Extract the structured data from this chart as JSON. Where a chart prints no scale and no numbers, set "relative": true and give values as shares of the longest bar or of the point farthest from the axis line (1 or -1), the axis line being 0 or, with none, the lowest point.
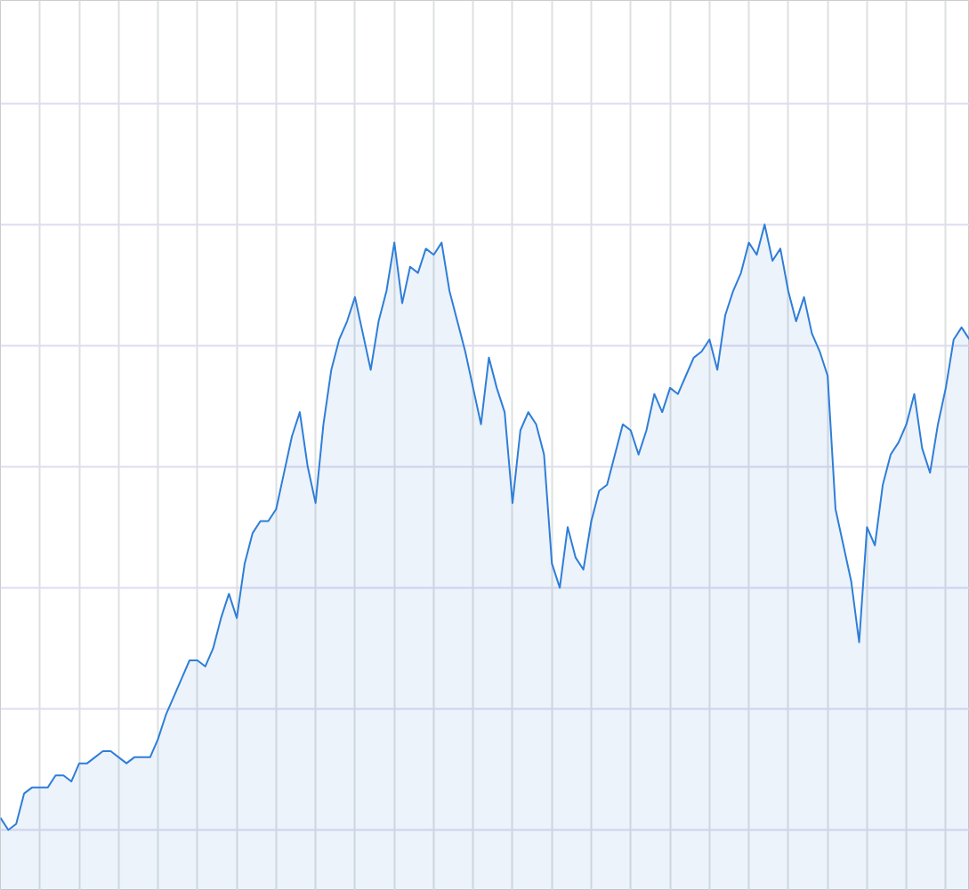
{
  "chart_data": {
    "type": "area",
    "relative": true,
    "grid": true,
    "color": "#2f7ed8",
    "categories": [
      null,
      null,
      null,
      null,
      null,
      null,
      null,
      null,
      null,
      null,
      null,
      null,
      null,
      null,
      null,
      null,
      null,
      null,
      null,
      null,
      null,
      null,
      null,
      null,
      null,
      null,
      null,
      null,
      null,
      null,
      null,
      null,
      null,
      null,
      null,
      null,
      null,
      null,
      null,
      null,
      null,
      null,
      null,
      null,
      null,
      null,
      null,
      null,
      null,
      null,
      null,
      null,
      null,
      null,
      null,
      null,
      null,
      null,
      null,
      null,
      null,
      null,
      null,
      null,
      null,
      null,
      null,
      null,
      null,
      null,
      null,
      null,
      null,
      null,
      null,
      null,
      null,
      null,
      null,
      null,
      null,
      null,
      null,
      null,
      null,
      null,
      null,
      null,
      null,
      null,
      null,
      null,
      null,
      null,
      null,
      null,
      null,
      null,
      null,
      null,
      null,
      null,
      null,
      null,
      null,
      null,
      null,
      null,
      null,
      null,
      null,
      null,
      null,
      null,
      null,
      null,
      null,
      null,
      null,
      null,
      null,
      null,
      null,
      null
    ],
    "values": [
      0.02,
      0,
      0.01,
      0.06,
      0.07,
      0.07,
      0.07,
      0.09,
      0.09,
      0.08,
      0.11,
      0.11,
      0.12,
      0.13,
      0.13,
      0.12,
      0.11,
      0.12,
      0.12,
      0.12,
      0.15,
      0.19,
      0.22,
      0.25,
      0.28,
      0.28,
      0.27,
      0.3,
      0.35,
      0.39,
      0.35,
      0.44,
      0.49,
      0.51,
      0.51,
      0.53,
      0.59,
      0.65,
      0.69,
      0.6,
      0.54,
      0.67,
      0.76,
      0.81,
      0.84,
      0.88,
      0.82,
      0.76,
      0.84,
      0.89,
      0.97,
      0.87,
      0.93,
      0.92,
      0.96,
      0.95,
      0.97,
      0.89,
      0.84,
      0.79,
      0.73,
      0.67,
      0.78,
      0.73,
      0.69,
      0.54,
      0.66,
      0.69,
      0.67,
      0.62,
      0.44,
      0.4,
      0.5,
      0.45,
      0.43,
      0.51,
      0.56,
      0.57,
      0.62,
      0.67,
      0.66,
      0.62,
      0.66,
      0.72,
      0.69,
      0.73,
      0.72,
      0.75,
      0.78,
      0.79,
      0.81,
      0.76,
      0.85,
      0.89,
      0.92,
      0.97,
      0.95,
      1,
      0.94,
      0.96,
      0.89,
      0.84,
      0.88,
      0.82,
      0.79,
      0.75,
      0.53,
      0.47,
      0.41,
      0.31,
      0.5,
      0.47,
      0.57,
      0.62,
      0.64,
      0.67,
      0.72,
      0.63,
      0.59,
      0.67,
      0.73,
      0.81,
      0.83,
      0.81
    ]
  }
}
